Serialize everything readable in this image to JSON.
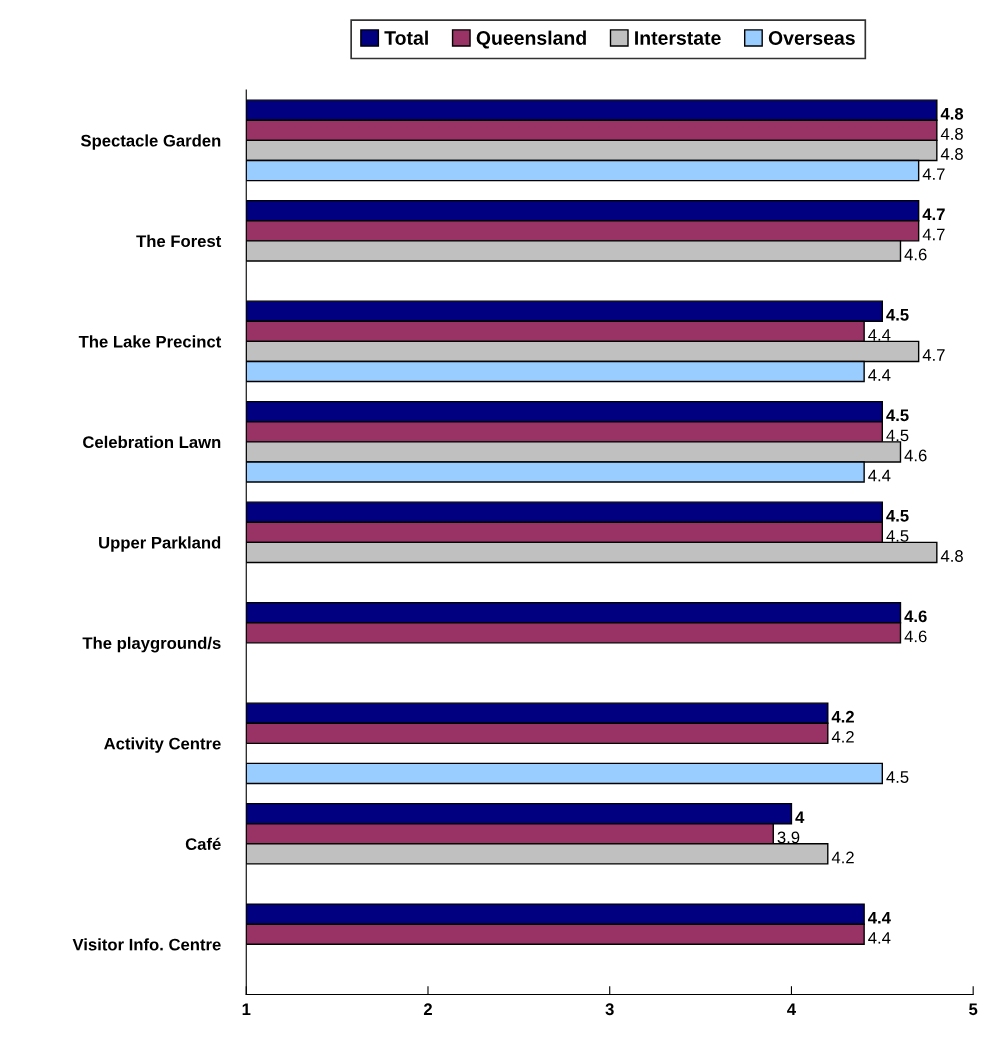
{
  "chart_data": {
    "type": "bar",
    "orientation": "horizontal",
    "categories": [
      "Spectacle Garden",
      "The Forest",
      "The Lake Precinct",
      "Celebration Lawn",
      "Upper Parkland",
      "The playground/s",
      "Activity Centre",
      "Café",
      "Visitor Info. Centre"
    ],
    "series": [
      {
        "name": "Total",
        "color": "#000080",
        "values": [
          4.8,
          4.7,
          4.5,
          4.5,
          4.5,
          4.6,
          4.2,
          4,
          4.4
        ]
      },
      {
        "name": "Queensland",
        "color": "#993366",
        "values": [
          4.8,
          4.7,
          4.4,
          4.5,
          4.5,
          4.6,
          4.2,
          3.9,
          4.4
        ]
      },
      {
        "name": "Interstate",
        "color": "#c0c0c0",
        "values": [
          4.8,
          4.6,
          4.7,
          4.6,
          4.8,
          null,
          null,
          4.2,
          null
        ]
      },
      {
        "name": "Overseas",
        "color": "#99ccff",
        "values": [
          4.7,
          null,
          4.4,
          4.4,
          null,
          null,
          4.5,
          null,
          null
        ]
      }
    ],
    "xlim": [
      1,
      5
    ],
    "xticks": [
      1,
      2,
      3,
      4,
      5
    ],
    "data_labels": true,
    "legend": "top",
    "grid": false
  }
}
